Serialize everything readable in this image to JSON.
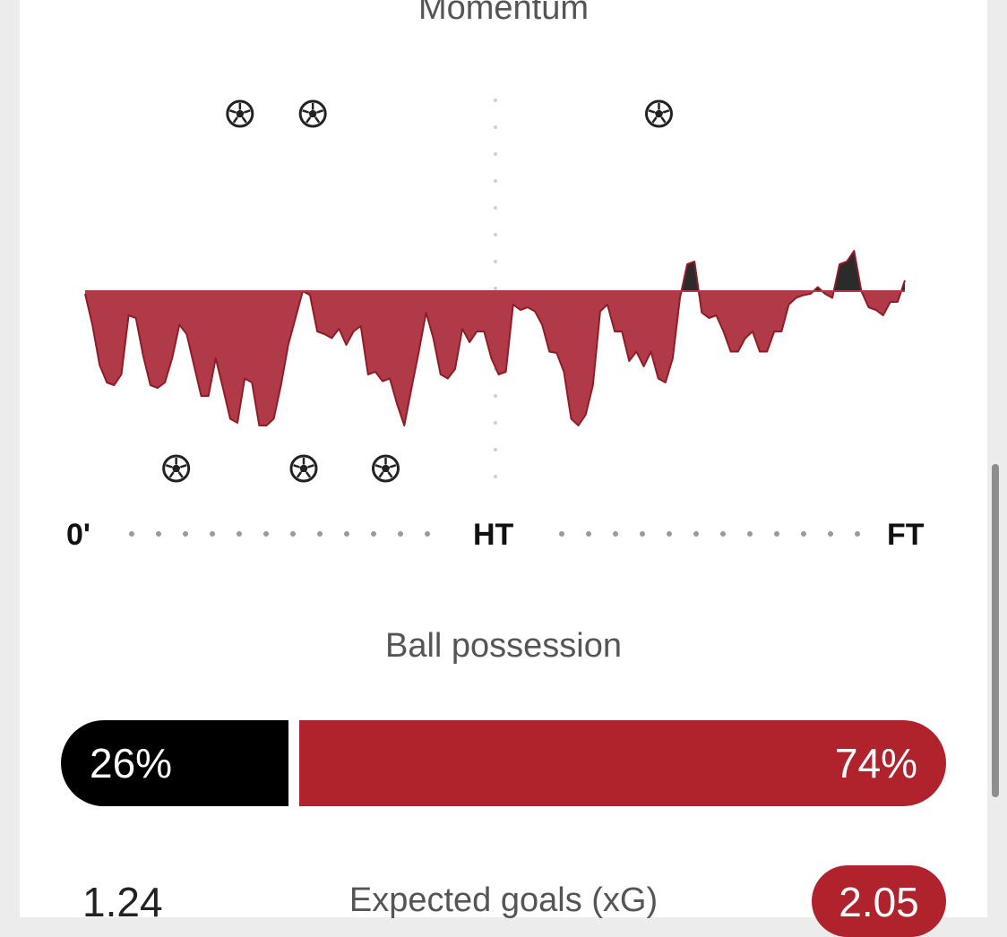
{
  "sections": {
    "momentum_title": "Momentum",
    "possession_title": "Ball possession"
  },
  "timeline": {
    "start_label": "0'",
    "half_label": "HT",
    "end_label": "FT"
  },
  "colors": {
    "home": "#000000",
    "away": "#b0232d",
    "away_fill": "#b13a48"
  },
  "goal_icon": "soccer-ball-icon",
  "chart_data": {
    "type": "area",
    "x_range": [
      0,
      90
    ],
    "y_range": [
      -100,
      100
    ],
    "values": [
      -2,
      -25,
      -55,
      -68,
      -70,
      -62,
      -18,
      -20,
      -48,
      -70,
      -72,
      -68,
      -50,
      -25,
      -32,
      -55,
      -78,
      -78,
      -50,
      -72,
      -95,
      -98,
      -65,
      -68,
      -100,
      -100,
      -95,
      -70,
      -40,
      -20,
      0,
      -3,
      -30,
      -32,
      -35,
      -28,
      -40,
      -30,
      -26,
      -62,
      -60,
      -67,
      -65,
      -84,
      -100,
      -72,
      -45,
      -16,
      -35,
      -62,
      -65,
      -58,
      -28,
      -38,
      -30,
      -30,
      -50,
      -62,
      -60,
      -10,
      -14,
      -12,
      -15,
      -25,
      -45,
      -46,
      -60,
      -95,
      -100,
      -92,
      -70,
      -15,
      -10,
      -30,
      -30,
      -52,
      -45,
      -56,
      -45,
      -65,
      -68,
      -50,
      -5,
      20,
      22,
      -16,
      -20,
      -18,
      -30,
      -45,
      -45,
      -35,
      -30,
      -45,
      -45,
      -30,
      -30,
      -10,
      -5,
      -3,
      -2,
      3,
      -2,
      -5,
      20,
      22,
      30,
      0,
      -12,
      -14,
      -18,
      -8,
      -8,
      8
    ],
    "home_goal_minutes": [
      17,
      25,
      63
    ],
    "away_goal_minutes": [
      10,
      24,
      33
    ]
  },
  "possession": {
    "label": "Ball possession",
    "home_value": 26,
    "away_value": 74,
    "home_text": "26%",
    "away_text": "74%"
  },
  "xg": {
    "label": "Expected goals (xG)",
    "home_value": "1.24",
    "away_value": "2.05"
  }
}
